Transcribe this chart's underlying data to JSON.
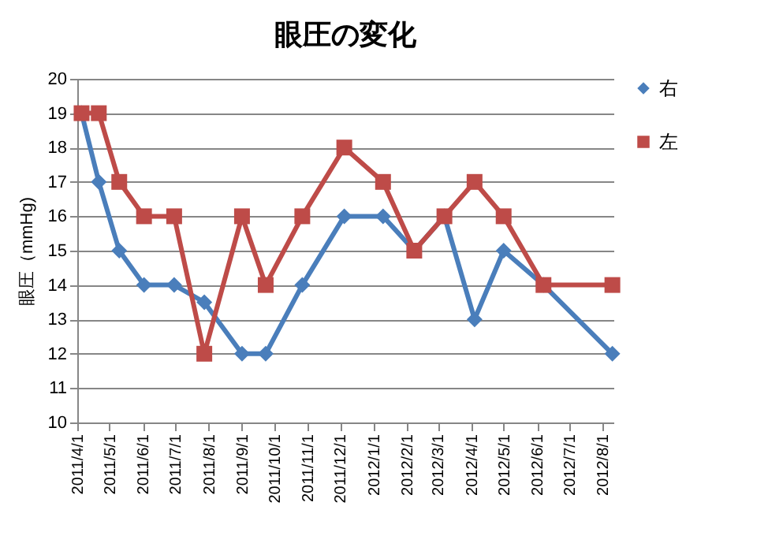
{
  "chart_data": {
    "type": "line",
    "title": "眼圧の変化",
    "ylabel": "眼圧（mmHg)",
    "x": [
      "2011-04-05",
      "2011-04-21",
      "2011-05-10",
      "2011-06-02",
      "2011-06-30",
      "2011-07-28",
      "2011-09-01",
      "2011-09-23",
      "2011-10-27",
      "2011-12-05",
      "2012-01-10",
      "2012-02-08",
      "2012-03-07",
      "2012-04-04",
      "2012-05-01",
      "2012-06-07",
      "2012-08-10"
    ],
    "series": [
      {
        "name": "右",
        "color": "#4a7ebb",
        "marker": "diamond",
        "values": [
          19,
          17,
          15,
          14,
          14,
          13.5,
          12,
          12,
          14,
          16,
          16,
          15,
          16,
          13,
          15,
          14,
          12
        ]
      },
      {
        "name": "左",
        "color": "#be4b48",
        "marker": "square",
        "values": [
          19,
          19,
          17,
          16,
          16,
          12,
          16,
          14,
          16,
          18,
          17,
          15,
          16,
          17,
          16,
          14,
          14
        ]
      }
    ],
    "xlim": [
      "2011-04-01",
      "2012-08-11"
    ],
    "xticks": [
      {
        "value": "2011-04-01",
        "label": "2011/4/1"
      },
      {
        "value": "2011-05-01",
        "label": "2011/5/1"
      },
      {
        "value": "2011-06-01",
        "label": "2011/6/1"
      },
      {
        "value": "2011-07-01",
        "label": "2011/7/1"
      },
      {
        "value": "2011-08-01",
        "label": "2011/8/1"
      },
      {
        "value": "2011-09-01",
        "label": "2011/9/1"
      },
      {
        "value": "2011-10-01",
        "label": "2011/10/1"
      },
      {
        "value": "2011-11-01",
        "label": "2011/11/1"
      },
      {
        "value": "2011-12-01",
        "label": "2011/12/1"
      },
      {
        "value": "2012-01-01",
        "label": "2012/1/1"
      },
      {
        "value": "2012-02-01",
        "label": "2012/2/1"
      },
      {
        "value": "2012-03-01",
        "label": "2012/3/1"
      },
      {
        "value": "2012-04-01",
        "label": "2012/4/1"
      },
      {
        "value": "2012-05-01",
        "label": "2012/5/1"
      },
      {
        "value": "2012-06-01",
        "label": "2012/6/1"
      },
      {
        "value": "2012-07-01",
        "label": "2012/7/1"
      },
      {
        "value": "2012-08-01",
        "label": "2012/8/1"
      }
    ],
    "ylim": [
      10,
      20
    ],
    "yticks": [
      10,
      11,
      12,
      13,
      14,
      15,
      16,
      17,
      18,
      19,
      20
    ],
    "grid": "y",
    "legend": "right",
    "line_style": "solid"
  }
}
